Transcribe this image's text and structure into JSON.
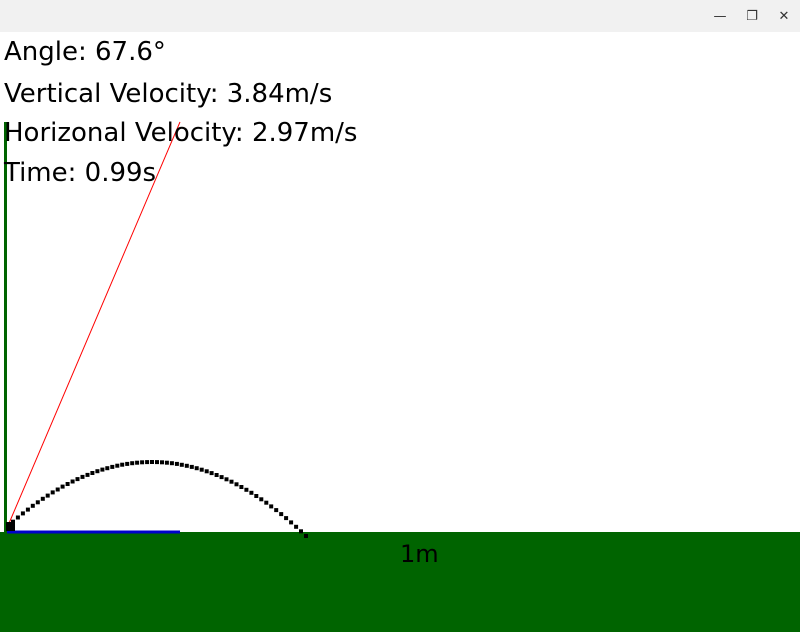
{
  "window": {
    "minimize_glyph": "—",
    "maximize_glyph": "❐",
    "close_glyph": "✕"
  },
  "hud": {
    "angle": "Angle: 67.6°",
    "vertical_velocity": "Vertical Velocity: 3.84m/s",
    "horizontal_velocity": "Horizonal Velocity: 2.97m/s",
    "time": "Time: 0.99s"
  },
  "simulation": {
    "angle_deg": 67.6,
    "vertical_velocity_mps": 3.84,
    "horizontal_velocity_mps": 2.97,
    "time_s": 0.99
  },
  "scale_label": "1m",
  "colors": {
    "ground": "#006400",
    "vertical_axis": "#006400",
    "aim_line": "#ff0000",
    "horizontal_vector": "#0000cc",
    "trajectory": "#000000",
    "titlebar": "#f1f1f1"
  }
}
